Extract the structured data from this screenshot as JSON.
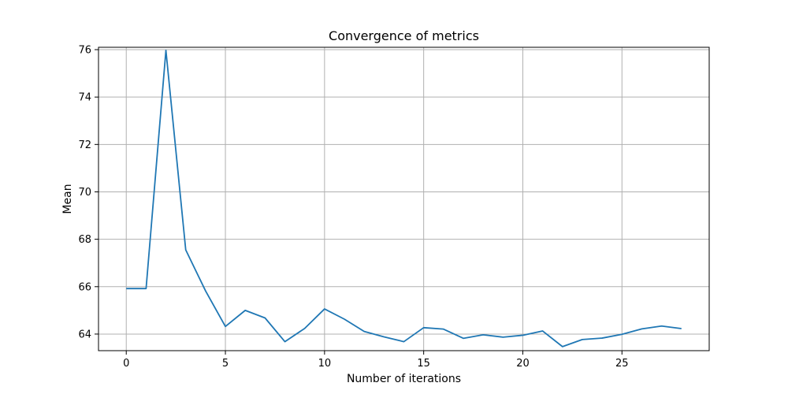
{
  "chart_data": {
    "type": "line",
    "title": "Convergence of metrics",
    "xlabel": "Number of iterations",
    "ylabel": "Mean",
    "xlim": [
      -1.4,
      29.4
    ],
    "ylim": [
      63.3,
      76.1
    ],
    "xticks": [
      0,
      5,
      10,
      15,
      20,
      25
    ],
    "yticks": [
      64,
      66,
      68,
      70,
      72,
      74,
      76
    ],
    "grid": true,
    "line_color": "#1f77b4",
    "series": [
      {
        "x": [
          0,
          1,
          2,
          3,
          4,
          5,
          6,
          7,
          8,
          9,
          10,
          11,
          12,
          13,
          14,
          15,
          16,
          17,
          18,
          19,
          20,
          21,
          22,
          23,
          24,
          25,
          26,
          27,
          28
        ],
        "values": [
          65.92,
          65.92,
          75.97,
          67.55,
          65.82,
          64.32,
          65.0,
          64.68,
          63.68,
          64.24,
          65.06,
          64.63,
          64.11,
          63.88,
          63.68,
          64.27,
          64.21,
          63.82,
          63.97,
          63.87,
          63.95,
          64.13,
          63.47,
          63.77,
          63.83,
          63.99,
          64.22,
          64.34,
          64.23
        ]
      }
    ]
  }
}
